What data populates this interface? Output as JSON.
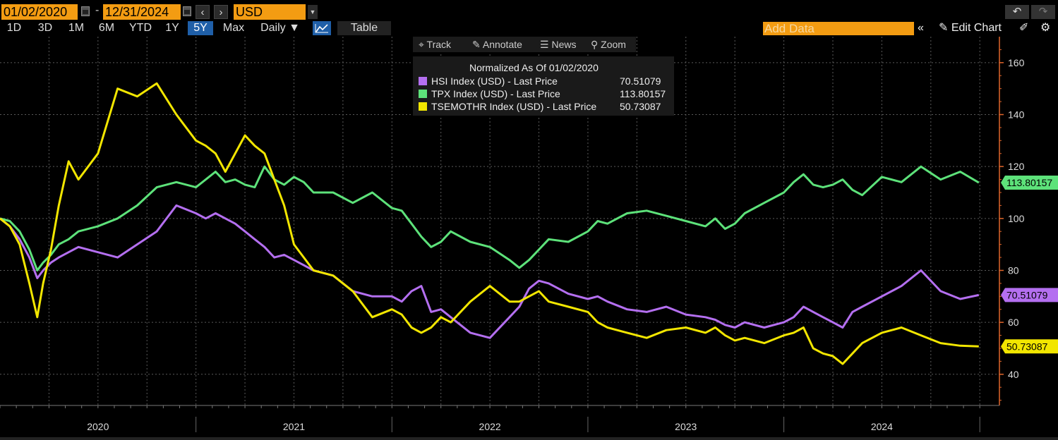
{
  "toolbar_top": {
    "start_date": "01/02/2020",
    "separator": "-",
    "end_date": "12/31/2024",
    "prev_label": "‹",
    "next_label": "›",
    "currency": "USD",
    "undo_label": "↶",
    "redo_label": "↷"
  },
  "timeframes": [
    "1D",
    "3D",
    "1M",
    "6M",
    "YTD",
    "1Y",
    "5Y",
    "Max"
  ],
  "active_timeframe": "5Y",
  "frequency": "Daily ▼",
  "table_label": "Table",
  "add_data_placeholder": "Add Data",
  "edit_chart_label": "Edit Chart",
  "chart_tools": {
    "track": "Track",
    "annotate": "Annotate",
    "news": "News",
    "zoom": "Zoom"
  },
  "legend": {
    "title": "Normalized As Of 01/02/2020",
    "rows": [
      {
        "name": "HSI Index (USD) - Last Price",
        "value": "70.51079",
        "color": "#b46ff0"
      },
      {
        "name": "TPX Index (USD) - Last Price",
        "value": "113.80157",
        "color": "#5de27a"
      },
      {
        "name": "TSEMOTHR Index (USD) - Last Price",
        "value": "50.73087",
        "color": "#f2e600"
      }
    ]
  },
  "colors": {
    "axis": "#e0652a",
    "background": "#000000",
    "grid": "#555555"
  },
  "chart_data": {
    "type": "line",
    "x_unit": "decimal year",
    "xlim": [
      2020.0,
      2025.1
    ],
    "ylim": [
      28,
      170
    ],
    "y_ticks": [
      40,
      60,
      80,
      100,
      120,
      140,
      160
    ],
    "x_tick_labels": [
      "2020",
      "2021",
      "2022",
      "2023",
      "2024"
    ],
    "grid": true,
    "legend_position": "top-center",
    "last_value_labels": [
      "113.80157",
      "70.51079",
      "50.73087"
    ],
    "series": [
      {
        "name": "TPX Index (USD) - Last Price",
        "color": "#5de27a",
        "x": [
          2020.0,
          2020.05,
          2020.1,
          2020.15,
          2020.19,
          2020.22,
          2020.26,
          2020.3,
          2020.35,
          2020.4,
          2020.5,
          2020.6,
          2020.7,
          2020.8,
          2020.9,
          2021.0,
          2021.05,
          2021.1,
          2021.15,
          2021.2,
          2021.25,
          2021.3,
          2021.35,
          2021.4,
          2021.45,
          2021.5,
          2021.55,
          2021.6,
          2021.7,
          2021.8,
          2021.9,
          2022.0,
          2022.05,
          2022.1,
          2022.15,
          2022.2,
          2022.25,
          2022.3,
          2022.4,
          2022.5,
          2022.6,
          2022.65,
          2022.7,
          2022.75,
          2022.8,
          2022.9,
          2023.0,
          2023.05,
          2023.1,
          2023.2,
          2023.3,
          2023.4,
          2023.5,
          2023.6,
          2023.65,
          2023.7,
          2023.75,
          2023.8,
          2023.9,
          2024.0,
          2024.05,
          2024.1,
          2024.15,
          2024.2,
          2024.25,
          2024.3,
          2024.35,
          2024.4,
          2024.5,
          2024.6,
          2024.7,
          2024.8,
          2024.9,
          2024.995
        ],
        "y": [
          100,
          99,
          95,
          88,
          80,
          83,
          86,
          90,
          92,
          95,
          97,
          100,
          105,
          112,
          114,
          112,
          115,
          118,
          114,
          115,
          113,
          112,
          120,
          115,
          113,
          116,
          114,
          110,
          110,
          106,
          110,
          104,
          103,
          98,
          93,
          89,
          91,
          95,
          91,
          89,
          84,
          81,
          84,
          88,
          92,
          91,
          95,
          99,
          98,
          102,
          103,
          101,
          99,
          97,
          100,
          96,
          98,
          102,
          106,
          110,
          114,
          117,
          113,
          112,
          113,
          115,
          111,
          109,
          116,
          114,
          120,
          115,
          118,
          113.80157
        ]
      },
      {
        "name": "HSI Index (USD) - Last Price",
        "color": "#b46ff0",
        "x": [
          2020.0,
          2020.05,
          2020.1,
          2020.15,
          2020.19,
          2020.22,
          2020.26,
          2020.3,
          2020.35,
          2020.4,
          2020.5,
          2020.6,
          2020.7,
          2020.8,
          2020.9,
          2021.0,
          2021.05,
          2021.1,
          2021.15,
          2021.2,
          2021.25,
          2021.3,
          2021.35,
          2021.4,
          2021.45,
          2021.5,
          2021.55,
          2021.6,
          2021.7,
          2021.8,
          2021.9,
          2022.0,
          2022.05,
          2022.1,
          2022.15,
          2022.2,
          2022.25,
          2022.3,
          2022.4,
          2022.5,
          2022.6,
          2022.65,
          2022.7,
          2022.75,
          2022.8,
          2022.9,
          2023.0,
          2023.05,
          2023.1,
          2023.2,
          2023.3,
          2023.4,
          2023.5,
          2023.6,
          2023.65,
          2023.7,
          2023.75,
          2023.8,
          2023.9,
          2024.0,
          2024.05,
          2024.1,
          2024.15,
          2024.2,
          2024.25,
          2024.3,
          2024.35,
          2024.4,
          2024.5,
          2024.6,
          2024.7,
          2024.8,
          2024.9,
          2024.995
        ],
        "y": [
          100,
          97,
          92,
          85,
          77,
          80,
          83,
          85,
          87,
          89,
          87,
          85,
          90,
          95,
          105,
          102,
          100,
          102,
          100,
          98,
          95,
          92,
          89,
          85,
          86,
          84,
          82,
          80,
          78,
          72,
          70,
          70,
          68,
          72,
          74,
          64,
          65,
          62,
          56,
          54,
          62,
          66,
          73,
          76,
          75,
          71,
          69,
          70,
          68,
          65,
          64,
          66,
          63,
          62,
          61,
          59,
          58,
          60,
          58,
          60,
          62,
          66,
          64,
          62,
          60,
          58,
          64,
          66,
          70,
          74,
          80,
          72,
          69,
          70.51079
        ]
      },
      {
        "name": "TSEMOTHR Index (USD) - Last Price",
        "color": "#f2e600",
        "x": [
          2020.0,
          2020.05,
          2020.1,
          2020.15,
          2020.19,
          2020.22,
          2020.26,
          2020.3,
          2020.35,
          2020.4,
          2020.5,
          2020.6,
          2020.7,
          2020.8,
          2020.9,
          2021.0,
          2021.05,
          2021.1,
          2021.15,
          2021.2,
          2021.25,
          2021.3,
          2021.35,
          2021.4,
          2021.45,
          2021.5,
          2021.55,
          2021.6,
          2021.7,
          2021.8,
          2021.9,
          2022.0,
          2022.05,
          2022.1,
          2022.15,
          2022.2,
          2022.25,
          2022.3,
          2022.4,
          2022.5,
          2022.6,
          2022.65,
          2022.7,
          2022.75,
          2022.8,
          2022.9,
          2023.0,
          2023.05,
          2023.1,
          2023.2,
          2023.3,
          2023.4,
          2023.5,
          2023.6,
          2023.65,
          2023.7,
          2023.75,
          2023.8,
          2023.9,
          2024.0,
          2024.05,
          2024.1,
          2024.15,
          2024.2,
          2024.25,
          2024.3,
          2024.35,
          2024.4,
          2024.5,
          2024.6,
          2024.7,
          2024.8,
          2024.9,
          2024.995
        ],
        "y": [
          100,
          97,
          90,
          75,
          62,
          75,
          88,
          105,
          122,
          115,
          125,
          150,
          147,
          152,
          140,
          130,
          128,
          125,
          118,
          125,
          132,
          128,
          125,
          115,
          105,
          90,
          85,
          80,
          78,
          72,
          62,
          65,
          63,
          58,
          56,
          58,
          62,
          60,
          68,
          74,
          68,
          68,
          70,
          72,
          68,
          66,
          64,
          60,
          58,
          56,
          54,
          57,
          58,
          56,
          58,
          55,
          53,
          54,
          52,
          55,
          56,
          58,
          50,
          48,
          47,
          44,
          48,
          52,
          56,
          58,
          55,
          52,
          51,
          50.73087
        ]
      }
    ]
  }
}
